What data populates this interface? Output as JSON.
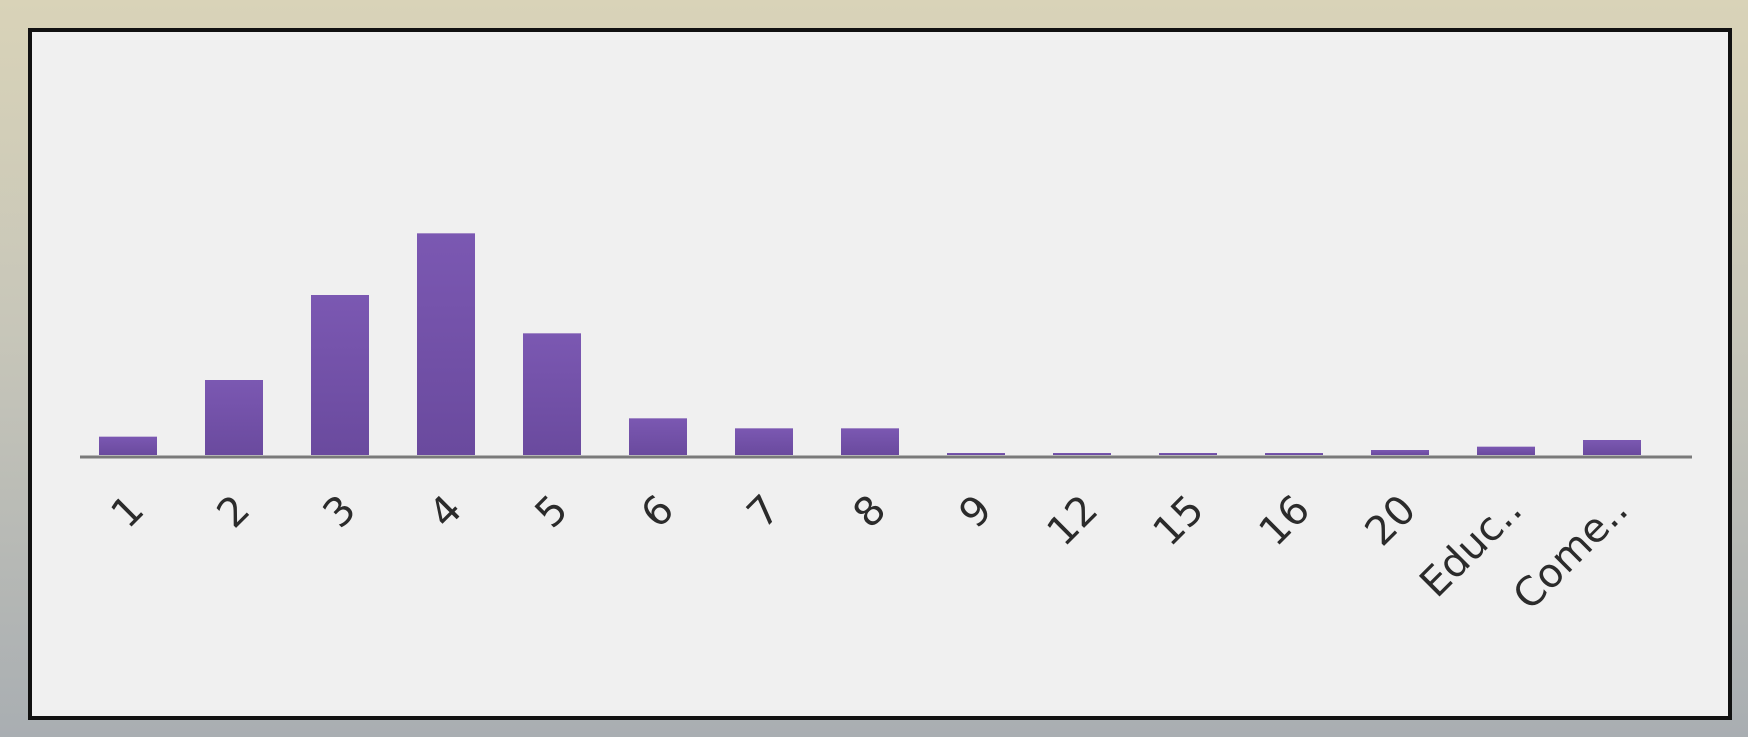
{
  "chart_data": {
    "type": "bar",
    "categories": [
      "1",
      "2",
      "3",
      "4",
      "5",
      "6",
      "7",
      "8",
      "9",
      "12",
      "15",
      "16",
      "20",
      "Educ..",
      "Come.."
    ],
    "values": [
      11,
      45,
      96,
      133,
      73,
      22,
      16,
      16,
      1,
      1,
      1,
      1,
      3,
      5,
      9
    ],
    "title": "",
    "xlabel": "",
    "ylabel": "",
    "ylim": [
      0,
      240
    ],
    "grid": false,
    "legend": "none",
    "bar_color": "#6a4a9e",
    "bar_color_light": "#7b58b2",
    "axis_color": "#7a7a7a"
  }
}
